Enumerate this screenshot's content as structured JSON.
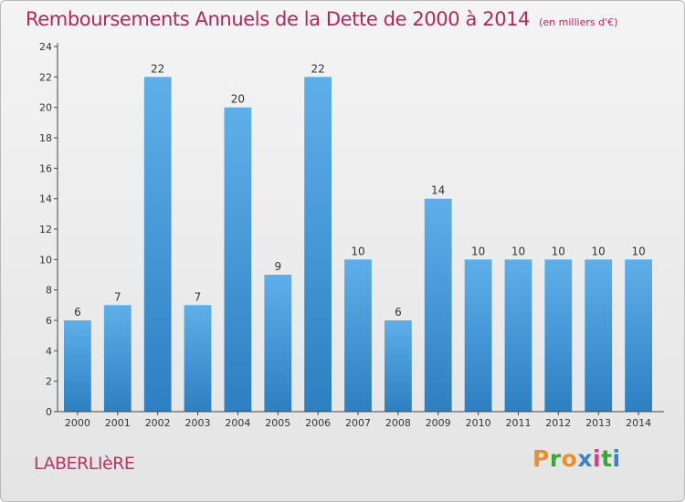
{
  "header": {
    "title": "Remboursements Annuels de la Dette de 2000 à 2014",
    "unit": "(en milliers d'€)"
  },
  "footer": {
    "commune": "LABERLIèRE",
    "brand": [
      "P",
      "r",
      "o",
      "x",
      "i",
      "t",
      "i"
    ],
    "brand_colors": [
      "#e8902a",
      "#3fa23a",
      "#e8902a",
      "#3c83c8",
      "#d83c8a",
      "#3fa23a",
      "#3c83c8"
    ]
  },
  "chart_data": {
    "type": "bar",
    "title": "Remboursements Annuels de la Dette de 2000 à 2014",
    "subtitle": "(en milliers d'€)",
    "xlabel": "",
    "ylabel": "",
    "categories": [
      "2000",
      "2001",
      "2002",
      "2003",
      "2004",
      "2005",
      "2006",
      "2007",
      "2008",
      "2009",
      "2010",
      "2011",
      "2012",
      "2013",
      "2014"
    ],
    "values": [
      6,
      7,
      22,
      7,
      20,
      9,
      22,
      10,
      6,
      14,
      10,
      10,
      10,
      10,
      10
    ],
    "data_labels": [
      "6",
      "7",
      "22",
      "7",
      "20",
      "9",
      "22",
      "10",
      "6",
      "14",
      "10",
      "10",
      "10",
      "10",
      "10"
    ],
    "ylim": [
      0,
      24
    ],
    "yticks": [
      "0",
      "2",
      "4",
      "6",
      "8",
      "10",
      "12",
      "14",
      "16",
      "18",
      "20",
      "22",
      "24"
    ],
    "grid": false,
    "colors": {
      "bar_light": "#5eafe9",
      "bar_dark": "#2d7fc1",
      "axis": "#444444"
    }
  }
}
